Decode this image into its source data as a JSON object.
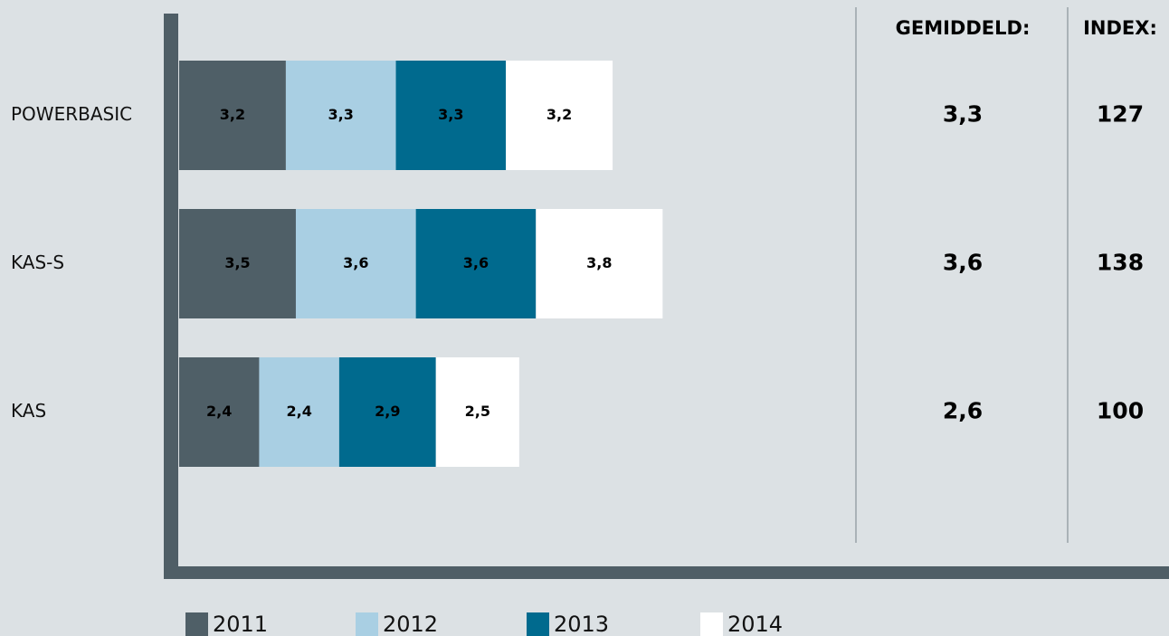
{
  "chart_data": {
    "type": "stacked-bar-horizontal",
    "categories": [
      "POWERBASIC",
      "KAS-S",
      "KAS"
    ],
    "series": [
      {
        "name": "2011",
        "color": "#4f5f67",
        "values": [
          3.2,
          3.5,
          2.4
        ],
        "value_labels": [
          "3,2",
          "3,5",
          "2,4"
        ]
      },
      {
        "name": "2012",
        "color": "#a9cfe3",
        "values": [
          3.3,
          3.6,
          2.4
        ],
        "value_labels": [
          "3,3",
          "3,6",
          "2,4"
        ]
      },
      {
        "name": "2013",
        "color": "#006a8e",
        "values": [
          3.3,
          3.6,
          2.9
        ],
        "value_labels": [
          "3,3",
          "3,6",
          "2,9"
        ]
      },
      {
        "name": "2014",
        "color": "#ffffff",
        "values": [
          3.2,
          3.8,
          2.5
        ],
        "value_labels": [
          "3,2",
          "3,8",
          "2,5"
        ]
      }
    ],
    "columns": [
      {
        "title": "GEMIDDELD:",
        "values": [
          3.3,
          3.6,
          2.6
        ],
        "value_labels": [
          "3,3",
          "3,6",
          "2,6"
        ]
      },
      {
        "title": "INDEX:",
        "values": [
          127,
          138,
          100
        ]
      }
    ]
  }
}
